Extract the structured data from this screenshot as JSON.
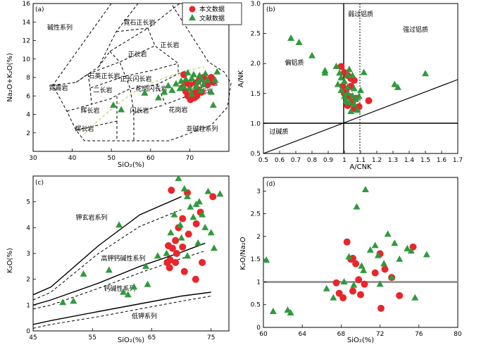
{
  "colors": {
    "this_study": "#e8262b",
    "literature": "#2f9a3c",
    "ref_line": "#999999"
  },
  "legend": {
    "this_study": "本文数据",
    "literature": "文献数据"
  },
  "chart_data": [
    {
      "panel": "(a)",
      "type": "scatter",
      "xlabel": "SiO₂(%)",
      "ylabel": "Na₂O+K₂O(%)",
      "xlim": [
        30,
        80
      ],
      "ylim": [
        0,
        16
      ],
      "xticks": [
        30,
        40,
        50,
        60,
        70
      ],
      "yticks": [
        2,
        4,
        6,
        8,
        10,
        12,
        14,
        16
      ],
      "field_labels": [
        "碱性系列",
        "霓石正长岩",
        "正长岩",
        "正长岩",
        "碱长花岗岩",
        "花岗岩",
        "石英正长岩",
        "正长闪长岩",
        "花岗闪长岩",
        "二长岩",
        "霓霞岩",
        "辉长岩",
        "辉长岩",
        "闪长岩",
        "花岗岩",
        "亚碱性系列"
      ],
      "series": [
        {
          "name": "本文数据",
          "points": [
            [
              68.5,
              8.3
            ],
            [
              68.2,
              6.9
            ],
            [
              69.0,
              6.5
            ],
            [
              69.5,
              6.0
            ],
            [
              70.0,
              7.2
            ],
            [
              70.2,
              5.6
            ],
            [
              70.8,
              6.3
            ],
            [
              71.2,
              5.8
            ],
            [
              71.5,
              7.4
            ],
            [
              72.0,
              6.7
            ],
            [
              72.5,
              7.8
            ],
            [
              73.0,
              6.4
            ],
            [
              73.5,
              8.0
            ],
            [
              74.5,
              7.2
            ],
            [
              75.5,
              8.0
            ],
            [
              76.0,
              7.5
            ],
            [
              68.8,
              7.4
            ],
            [
              71.8,
              6.0
            ]
          ]
        },
        {
          "name": "文献数据",
          "points": [
            [
              50.5,
              5.0
            ],
            [
              52.5,
              4.5
            ],
            [
              58.5,
              6.3
            ],
            [
              62.0,
              5.8
            ],
            [
              63.5,
              6.4
            ],
            [
              64.5,
              7.1
            ],
            [
              65.5,
              6.6
            ],
            [
              66.5,
              7.3
            ],
            [
              67.5,
              6.8
            ],
            [
              67.8,
              7.6
            ],
            [
              68.5,
              7.0
            ],
            [
              69.0,
              7.8
            ],
            [
              69.5,
              8.5
            ],
            [
              70.0,
              6.8
            ],
            [
              70.5,
              7.9
            ],
            [
              71.0,
              8.3
            ],
            [
              71.5,
              7.0
            ],
            [
              72.0,
              7.5
            ],
            [
              72.5,
              8.2
            ],
            [
              73.0,
              7.8
            ],
            [
              73.5,
              7.2
            ],
            [
              74.0,
              8.4
            ],
            [
              74.5,
              7.7
            ],
            [
              75.5,
              6.4
            ],
            [
              76.0,
              5.0
            ],
            [
              76.5,
              7.7
            ],
            [
              77.0,
              8.6
            ],
            [
              70.5,
              6.2
            ],
            [
              72.8,
              6.6
            ]
          ]
        }
      ]
    },
    {
      "panel": "(b)",
      "type": "scatter",
      "xlabel": "A/CNK",
      "ylabel": "A/NK",
      "xlim": [
        0.5,
        1.7
      ],
      "ylim": [
        0.5,
        3.0
      ],
      "xticks": [
        0.5,
        0.6,
        0.7,
        0.8,
        0.9,
        1.0,
        1.1,
        1.2,
        1.3,
        1.4,
        1.5,
        1.6,
        1.7
      ],
      "yticks": [
        0.5,
        1.0,
        1.5,
        2.0,
        2.5,
        3.0
      ],
      "field_labels": [
        "弱过铝质",
        "强过铝质",
        "偏铝质",
        "过碱质"
      ],
      "series": [
        {
          "name": "本文数据",
          "points": [
            [
              0.98,
              1.95
            ],
            [
              1.0,
              1.85
            ],
            [
              1.02,
              1.8
            ],
            [
              1.04,
              1.75
            ],
            [
              1.06,
              1.72
            ],
            [
              0.99,
              1.62
            ],
            [
              1.01,
              1.55
            ],
            [
              1.03,
              1.45
            ],
            [
              1.05,
              1.35
            ],
            [
              1.07,
              1.42
            ],
            [
              1.02,
              1.3
            ],
            [
              1.06,
              1.25
            ],
            [
              1.09,
              1.28
            ],
            [
              1.15,
              1.38
            ],
            [
              1.0,
              1.5
            ],
            [
              1.04,
              1.62
            ]
          ]
        },
        {
          "name": "文献数据",
          "points": [
            [
              0.67,
              2.42
            ],
            [
              0.72,
              2.35
            ],
            [
              0.8,
              2.13
            ],
            [
              0.88,
              1.88
            ],
            [
              0.88,
              1.84
            ],
            [
              0.95,
              1.95
            ],
            [
              0.97,
              1.84
            ],
            [
              0.98,
              1.76
            ],
            [
              1.0,
              1.7
            ],
            [
              1.02,
              1.8
            ],
            [
              1.03,
              1.9
            ],
            [
              1.05,
              1.8
            ],
            [
              0.96,
              1.65
            ],
            [
              0.98,
              1.55
            ],
            [
              1.0,
              1.45
            ],
            [
              1.01,
              1.38
            ],
            [
              1.02,
              1.5
            ],
            [
              1.03,
              1.35
            ],
            [
              1.04,
              1.2
            ],
            [
              1.05,
              1.46
            ],
            [
              1.06,
              1.58
            ],
            [
              1.07,
              1.4
            ],
            [
              1.08,
              1.22
            ],
            [
              1.09,
              1.45
            ],
            [
              1.1,
              1.55
            ],
            [
              1.12,
              1.85
            ],
            [
              1.31,
              1.65
            ],
            [
              1.33,
              1.6
            ],
            [
              1.5,
              1.83
            ],
            [
              1.02,
              1.6
            ],
            [
              1.06,
              1.32
            ]
          ]
        }
      ]
    },
    {
      "panel": "(c)",
      "type": "scatter",
      "xlabel": "SiO₂(%)",
      "ylabel": "K₂O(%)",
      "xlim": [
        45,
        78
      ],
      "ylim": [
        0,
        6
      ],
      "xticks": [
        45,
        55,
        65,
        75
      ],
      "yticks": [
        0,
        1,
        2,
        3,
        4,
        5
      ],
      "field_labels": [
        "钾玄岩系列",
        "高钾钙碱性系列",
        "钙碱性系列",
        "低钾系列"
      ],
      "series": [
        {
          "name": "本文数据",
          "points": [
            [
              68.3,
              5.45
            ],
            [
              71.0,
              5.35
            ],
            [
              75.3,
              5.2
            ],
            [
              73.2,
              4.6
            ],
            [
              70.2,
              4.35
            ],
            [
              72.5,
              4.15
            ],
            [
              69.5,
              4.0
            ],
            [
              71.2,
              3.75
            ],
            [
              69.0,
              3.5
            ],
            [
              67.8,
              3.3
            ],
            [
              68.5,
              3.2
            ],
            [
              69.2,
              3.0
            ],
            [
              68.1,
              2.75
            ],
            [
              67.6,
              2.65
            ],
            [
              68.0,
              2.45
            ],
            [
              70.5,
              2.3
            ],
            [
              73.5,
              2.65
            ],
            [
              72.4,
              2.0
            ],
            [
              70.2,
              3.25
            ],
            [
              69.0,
              2.65
            ]
          ]
        },
        {
          "name": "文献数据",
          "points": [
            [
              50.0,
              1.1
            ],
            [
              51.8,
              1.15
            ],
            [
              53.5,
              2.2
            ],
            [
              57.8,
              2.35
            ],
            [
              59.5,
              4.1
            ],
            [
              60.2,
              1.5
            ],
            [
              61.0,
              1.4
            ],
            [
              62.0,
              1.7
            ],
            [
              64.0,
              2.5
            ],
            [
              64.3,
              1.8
            ],
            [
              66.0,
              2.9
            ],
            [
              67.5,
              3.0
            ],
            [
              68.2,
              3.8
            ],
            [
              68.8,
              4.5
            ],
            [
              69.5,
              5.9
            ],
            [
              69.8,
              4.1
            ],
            [
              70.5,
              5.5
            ],
            [
              71.0,
              5.2
            ],
            [
              71.5,
              4.8
            ],
            [
              72.0,
              4.4
            ],
            [
              72.5,
              4.9
            ],
            [
              73.0,
              5.0
            ],
            [
              73.5,
              4.5
            ],
            [
              74.0,
              4.0
            ],
            [
              74.5,
              5.4
            ],
            [
              75.0,
              3.8
            ],
            [
              75.5,
              3.2
            ],
            [
              76.5,
              5.3
            ],
            [
              70.0,
              3.6
            ],
            [
              72.8,
              3.4
            ],
            [
              71.0,
              2.9
            ]
          ]
        }
      ]
    },
    {
      "panel": "(d)",
      "type": "scatter",
      "xlabel": "SiO₂(%)",
      "ylabel": "K₂O/Na₂O",
      "xlim": [
        60,
        80
      ],
      "ylim": [
        0,
        3.3
      ],
      "xticks": [
        60,
        64,
        68,
        72,
        76,
        80
      ],
      "ytick_labels": [
        "0",
        "0.5",
        "1",
        "1.5",
        "2",
        "2.5",
        "3"
      ],
      "yticks": [
        0,
        0.5,
        1.0,
        1.5,
        2.0,
        2.5,
        3.0
      ],
      "hline": 1.0,
      "series": [
        {
          "name": "本文数据",
          "points": [
            [
              67.5,
              0.98
            ],
            [
              67.8,
              0.75
            ],
            [
              68.2,
              0.65
            ],
            [
              68.6,
              1.88
            ],
            [
              69.0,
              1.5
            ],
            [
              69.2,
              0.8
            ],
            [
              69.5,
              1.4
            ],
            [
              69.8,
              1.05
            ],
            [
              70.0,
              0.72
            ],
            [
              70.4,
              0.95
            ],
            [
              71.5,
              1.2
            ],
            [
              72.0,
              1.62
            ],
            [
              72.1,
              0.42
            ],
            [
              72.5,
              1.28
            ],
            [
              73.2,
              1.1
            ],
            [
              74.0,
              0.7
            ],
            [
              75.4,
              1.77
            ],
            [
              69.2,
              1.52
            ]
          ]
        },
        {
          "name": "文献数据",
          "points": [
            [
              60.3,
              1.48
            ],
            [
              61.0,
              0.35
            ],
            [
              62.5,
              0.38
            ],
            [
              62.8,
              0.32
            ],
            [
              66.5,
              0.85
            ],
            [
              67.2,
              0.65
            ],
            [
              68.3,
              1.0
            ],
            [
              68.8,
              1.55
            ],
            [
              69.3,
              0.93
            ],
            [
              69.6,
              2.65
            ],
            [
              70.1,
              1.35
            ],
            [
              70.5,
              3.03
            ],
            [
              71.0,
              1.7
            ],
            [
              71.5,
              1.8
            ],
            [
              71.8,
              1.58
            ],
            [
              72.0,
              0.95
            ],
            [
              72.4,
              1.4
            ],
            [
              72.8,
              2.05
            ],
            [
              73.2,
              1.1
            ],
            [
              73.5,
              1.85
            ],
            [
              74.0,
              1.5
            ],
            [
              74.8,
              1.73
            ],
            [
              75.6,
              0.65
            ],
            [
              76.8,
              1.6
            ],
            [
              75.2,
              1.68
            ],
            [
              70.3,
              1.25
            ]
          ]
        }
      ]
    }
  ]
}
